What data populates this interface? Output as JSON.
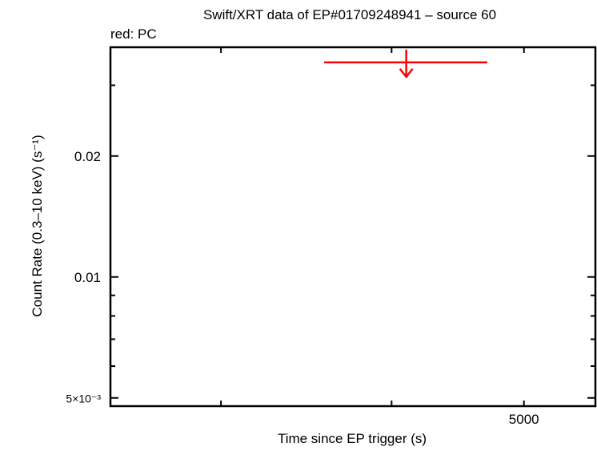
{
  "chart_data": {
    "type": "scatter",
    "title": "Swift/XRT data of EP#01709248941 – source 60",
    "subtitle": "red: PC",
    "xlabel": "Time since EP trigger (s)",
    "ylabel": "Count Rate (0.3–10 keV) (s⁻¹)",
    "x_scale": "log",
    "y_scale": "log",
    "xlim": [
      2490,
      5640
    ],
    "ylim": [
      0.00477,
      0.0373
    ],
    "x_ticks": [
      {
        "value": 3000,
        "label": ""
      },
      {
        "value": 4000,
        "label": ""
      },
      {
        "value": 5000,
        "label": "5000"
      }
    ],
    "y_ticks": [
      {
        "value": 0.005,
        "label": "5×10⁻³"
      },
      {
        "value": 0.006,
        "label": ""
      },
      {
        "value": 0.007,
        "label": ""
      },
      {
        "value": 0.008,
        "label": ""
      },
      {
        "value": 0.009,
        "label": ""
      },
      {
        "value": 0.01,
        "label": "0.01"
      },
      {
        "value": 0.02,
        "label": "0.02"
      },
      {
        "value": 0.03,
        "label": ""
      }
    ],
    "grid": false,
    "series": [
      {
        "name": "PC",
        "color": "#ff0000",
        "points": [
          {
            "x": 4100,
            "x_low": 3570,
            "x_high": 4700,
            "y": 0.0342,
            "upper_limit": true
          }
        ]
      }
    ]
  }
}
